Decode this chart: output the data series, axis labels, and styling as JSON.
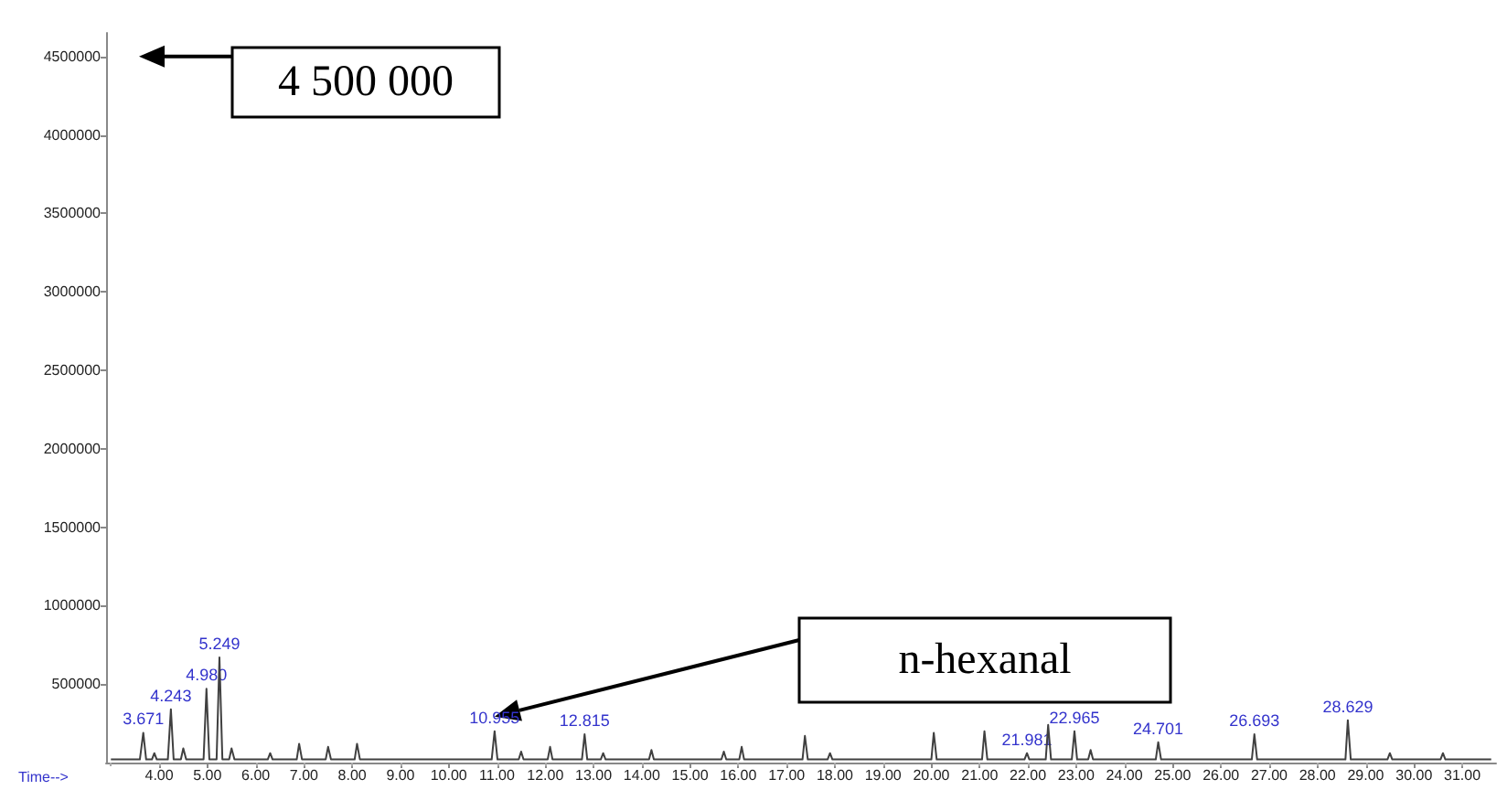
{
  "chart_data": {
    "type": "line",
    "xlabel": "Time-->",
    "x": [
      3.0,
      3.6,
      3.671,
      3.73,
      3.85,
      3.9,
      3.95,
      4.18,
      4.243,
      4.3,
      4.45,
      4.5,
      4.56,
      4.92,
      4.98,
      5.04,
      5.19,
      5.249,
      5.31,
      5.45,
      5.5,
      5.56,
      6.25,
      6.3,
      6.35,
      6.85,
      6.9,
      6.96,
      7.45,
      7.5,
      7.56,
      8.05,
      8.1,
      8.16,
      10.89,
      10.95,
      11.01,
      11.45,
      11.5,
      11.55,
      12.05,
      12.1,
      12.15,
      12.76,
      12.815,
      12.87,
      13.15,
      13.2,
      13.25,
      14.15,
      14.2,
      14.25,
      15.65,
      15.7,
      15.75,
      16.02,
      16.07,
      16.12,
      17.33,
      17.38,
      17.44,
      17.85,
      17.9,
      17.95,
      20.0,
      20.05,
      20.11,
      21.05,
      21.1,
      21.16,
      21.93,
      21.981,
      22.03,
      22.37,
      22.42,
      22.48,
      22.91,
      22.965,
      23.02,
      23.25,
      23.3,
      23.35,
      24.65,
      24.701,
      24.76,
      26.64,
      26.693,
      26.75,
      28.58,
      28.629,
      28.69,
      29.45,
      29.5,
      29.55,
      30.55,
      30.6,
      30.65,
      31.6
    ],
    "series": [
      {
        "color": "#404040",
        "values": [
          20000,
          20000,
          190000,
          20000,
          20000,
          60000,
          20000,
          20000,
          340000,
          20000,
          20000,
          90000,
          20000,
          20000,
          470000,
          20000,
          20000,
          670000,
          20000,
          20000,
          90000,
          20000,
          20000,
          60000,
          20000,
          20000,
          120000,
          20000,
          20000,
          100000,
          20000,
          20000,
          120000,
          20000,
          20000,
          200000,
          20000,
          20000,
          70000,
          20000,
          20000,
          100000,
          20000,
          20000,
          180000,
          20000,
          20000,
          60000,
          20000,
          20000,
          80000,
          20000,
          20000,
          70000,
          20000,
          20000,
          100000,
          20000,
          20000,
          170000,
          20000,
          20000,
          60000,
          20000,
          20000,
          190000,
          20000,
          20000,
          200000,
          20000,
          20000,
          60000,
          20000,
          20000,
          240000,
          20000,
          20000,
          200000,
          20000,
          20000,
          80000,
          20000,
          20000,
          130000,
          20000,
          20000,
          180000,
          20000,
          20000,
          270000,
          20000,
          20000,
          60000,
          20000,
          20000,
          60000,
          20000,
          20000
        ]
      }
    ],
    "marker": "none",
    "xlim": [
      2.9,
      31.7
    ],
    "xticks": [
      {
        "value": 4,
        "label": "4.00"
      },
      {
        "value": 5,
        "label": "5.00"
      },
      {
        "value": 6,
        "label": "6.00"
      },
      {
        "value": 7,
        "label": "7.00"
      },
      {
        "value": 8,
        "label": "8.00"
      },
      {
        "value": 9,
        "label": "9.00"
      },
      {
        "value": 10,
        "label": "10.00"
      },
      {
        "value": 11,
        "label": "11.00"
      },
      {
        "value": 12,
        "label": "12.00"
      },
      {
        "value": 13,
        "label": "13.00"
      },
      {
        "value": 14,
        "label": "14.00"
      },
      {
        "value": 15,
        "label": "15.00"
      },
      {
        "value": 16,
        "label": "16.00"
      },
      {
        "value": 17,
        "label": "17.00"
      },
      {
        "value": 18,
        "label": "18.00"
      },
      {
        "value": 19,
        "label": "19.00"
      },
      {
        "value": 20,
        "label": "20.00"
      },
      {
        "value": 21,
        "label": "21.00"
      },
      {
        "value": 22,
        "label": "22.00"
      },
      {
        "value": 23,
        "label": "23.00"
      },
      {
        "value": 24,
        "label": "24.00"
      },
      {
        "value": 25,
        "label": "25.00"
      },
      {
        "value": 26,
        "label": "26.00"
      },
      {
        "value": 27,
        "label": "27.00"
      },
      {
        "value": 28,
        "label": "28.00"
      },
      {
        "value": 29,
        "label": "29.00"
      },
      {
        "value": 30,
        "label": "30.00"
      },
      {
        "value": 31,
        "label": "31.00"
      }
    ],
    "ylim": [
      0,
      4650000
    ],
    "yticks": [
      500000,
      1000000,
      1500000,
      2000000,
      2500000,
      3000000,
      3500000,
      4000000,
      4500000
    ],
    "annotations": [
      "4 500 000",
      "n-hexanal",
      {
        "text": "3.671",
        "x": 3.671,
        "y": 190000
      },
      {
        "text": "4.243",
        "x": 4.243,
        "y": 340000
      },
      {
        "text": "4.980",
        "x": 4.98,
        "y": 470000
      },
      {
        "text": "5.249",
        "x": 5.249,
        "y": 670000
      },
      {
        "text": "10.955",
        "x": 10.95,
        "y": 200000
      },
      {
        "text": "12.815",
        "x": 12.815,
        "y": 180000
      },
      {
        "text": "21.981",
        "x": 21.981,
        "y": 60000
      },
      {
        "text": "22.965",
        "x": 22.965,
        "y": 200000
      },
      {
        "text": "24.701",
        "x": 24.701,
        "y": 130000
      },
      {
        "text": "26.693",
        "x": 26.693,
        "y": 180000
      },
      {
        "text": "28.629",
        "x": 28.629,
        "y": 270000
      }
    ]
  }
}
